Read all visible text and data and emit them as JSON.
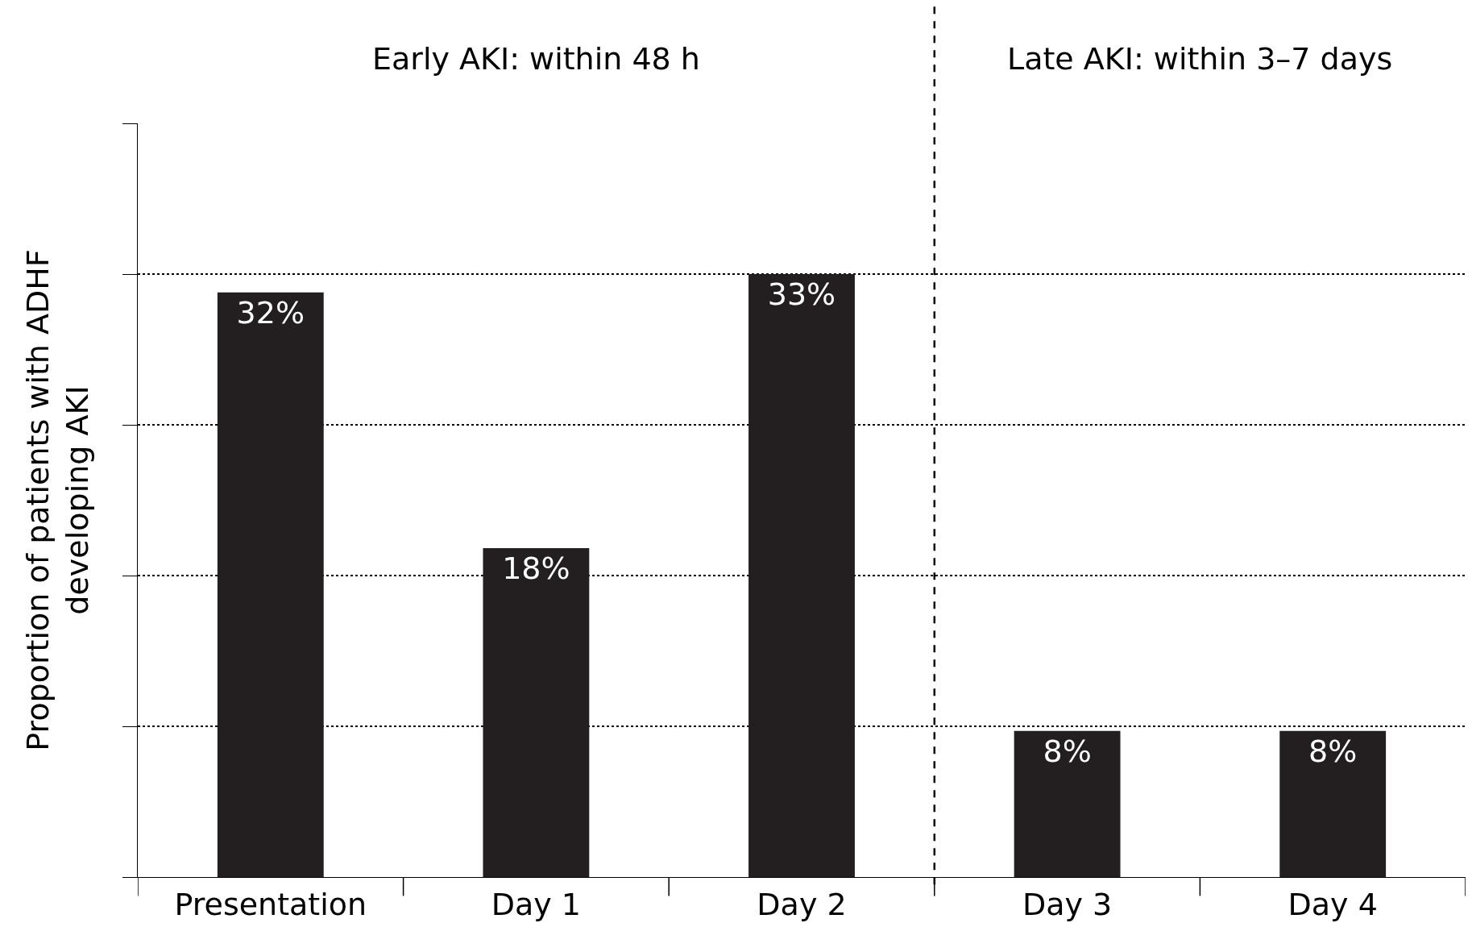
{
  "chart_data": {
    "type": "bar",
    "ylabel": "Proportion of patients with ADHF\ndeveloping AKI",
    "categories": [
      "Presentation",
      "Day 1",
      "Day 2",
      "Day 3",
      "Day 4"
    ],
    "values": [
      32,
      18,
      33,
      8,
      8
    ],
    "value_labels": [
      "32%",
      "18%",
      "33%",
      "8%",
      "8%"
    ],
    "color": "#231f20",
    "grid": "y",
    "tick_labels": "x",
    "annotations": [
      "Early AKI: within 48 h",
      "Late AKI: within 3–7 days"
    ]
  }
}
